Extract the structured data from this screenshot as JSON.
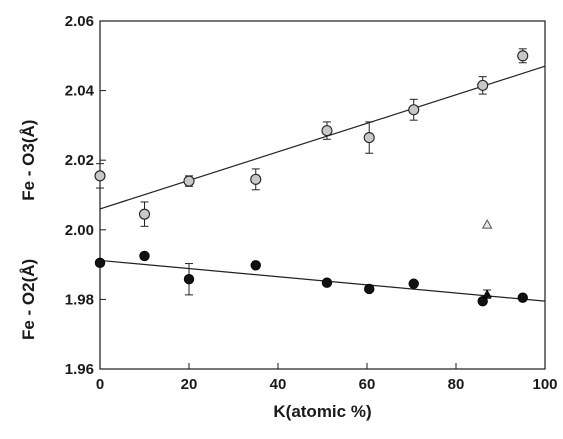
{
  "chart_data": {
    "type": "scatter",
    "title": "",
    "xlabel": "K(atomic %)",
    "ylabels": [
      "Fe - O3(Å)",
      "Fe - O2(Å)"
    ],
    "xlim": [
      0,
      100
    ],
    "ylim": [
      1.96,
      2.06
    ],
    "x_ticks": [
      0,
      20,
      40,
      60,
      80,
      100
    ],
    "y_ticks": [
      1.96,
      1.98,
      2.0,
      2.02,
      2.04,
      2.06
    ],
    "grid": false,
    "legend": "none",
    "series": [
      {
        "marker": "circle-open-gray",
        "color": "#c8c8c8",
        "x": [
          0,
          10,
          20,
          35,
          51,
          60.5,
          70.5,
          86,
          95
        ],
        "y": [
          2.0155,
          2.0045,
          2.014,
          2.0145,
          2.0285,
          2.0265,
          2.0345,
          2.0415,
          2.05
        ],
        "yerr": [
          0.0035,
          0.0035,
          0.0015,
          0.003,
          0.0025,
          0.0045,
          0.003,
          0.0025,
          0.002
        ]
      },
      {
        "marker": "circle-filled-black",
        "color": "#111111",
        "x": [
          0,
          10,
          20,
          35,
          51,
          60.5,
          70.5,
          86,
          95
        ],
        "y": [
          1.9905,
          1.9925,
          1.9858,
          1.9898,
          1.9848,
          1.983,
          1.9845,
          1.9795,
          1.9805
        ],
        "yerr": [
          0,
          0,
          0.0045,
          0,
          0,
          0,
          0,
          0,
          0
        ]
      },
      {
        "marker": "triangle-open",
        "color": "#aaaaaa",
        "x": [
          87
        ],
        "y": [
          2.0015
        ],
        "yerr": [
          0
        ]
      },
      {
        "marker": "triangle-filled",
        "color": "#111111",
        "x": [
          87
        ],
        "y": [
          1.9815
        ],
        "yerr": [
          0.0012
        ]
      }
    ],
    "fit_lines": [
      {
        "x": [
          0,
          100
        ],
        "y": [
          2.006,
          2.047
        ]
      },
      {
        "x": [
          0,
          100
        ],
        "y": [
          1.9912,
          1.9795
        ]
      }
    ]
  }
}
